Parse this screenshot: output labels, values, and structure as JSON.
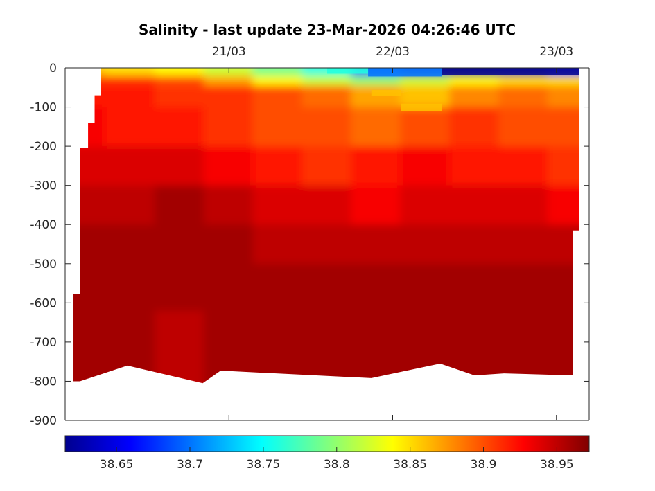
{
  "chart_data": {
    "type": "heatmap",
    "title": "Salinity - last update 23-Mar-2026 04:26:46 UTC",
    "xlabel": "",
    "ylabel": "",
    "x_ticks": [
      "21/03",
      "22/03",
      "23/03"
    ],
    "x_tick_days": [
      21,
      22,
      23
    ],
    "xlim_days": [
      20.0,
      23.2
    ],
    "y_ticks": [
      0,
      -100,
      -200,
      -300,
      -400,
      -500,
      -600,
      -700,
      -800,
      -900
    ],
    "ylim": [
      -900,
      0
    ],
    "colorbar": {
      "colormap": "jet",
      "range": [
        38.615,
        38.972
      ],
      "ticks": [
        "38.65",
        "38.7",
        "38.75",
        "38.8",
        "38.85",
        "38.9",
        "38.95"
      ],
      "tick_values": [
        38.65,
        38.7,
        38.75,
        38.8,
        38.85,
        38.9,
        38.95
      ]
    },
    "bottom_depth_profile": {
      "days": [
        20.09,
        20.38,
        20.84,
        20.95,
        21.87,
        22.29,
        22.5,
        22.68,
        23.1
      ],
      "depth": [
        -800,
        -760,
        -805,
        -773,
        -792,
        -755,
        -785,
        -780,
        -785
      ]
    },
    "profile_top_edge": {
      "days": [
        20.05,
        20.09,
        20.14,
        20.18,
        20.22
      ],
      "depth": [
        -578,
        -205,
        -140,
        -70,
        0
      ]
    },
    "depth_layers": [
      {
        "top": 0,
        "bottom": -20,
        "values": [
          38.86,
          38.85,
          38.84,
          38.82,
          38.79,
          38.76,
          38.7,
          38.64,
          38.62,
          38.63,
          38.66
        ]
      },
      {
        "top": -20,
        "bottom": -45,
        "values": [
          38.91,
          38.91,
          38.9,
          38.87,
          38.84,
          38.82,
          38.8,
          38.82,
          38.84,
          38.85,
          38.85
        ]
      },
      {
        "top": -45,
        "bottom": -100,
        "values": [
          38.92,
          38.92,
          38.91,
          38.91,
          38.9,
          38.89,
          38.87,
          38.86,
          38.88,
          38.89,
          38.88
        ]
      },
      {
        "top": -100,
        "bottom": -200,
        "values": [
          38.93,
          38.92,
          38.92,
          38.91,
          38.9,
          38.9,
          38.89,
          38.9,
          38.91,
          38.9,
          38.9
        ]
      },
      {
        "top": -200,
        "bottom": -300,
        "values": [
          38.94,
          38.94,
          38.94,
          38.93,
          38.92,
          38.91,
          38.92,
          38.93,
          38.92,
          38.92,
          38.91
        ]
      },
      {
        "top": -300,
        "bottom": -400,
        "values": [
          38.95,
          38.95,
          38.96,
          38.95,
          38.94,
          38.94,
          38.93,
          38.94,
          38.94,
          38.94,
          38.93
        ]
      },
      {
        "top": -400,
        "bottom": -500,
        "values": [
          38.96,
          38.96,
          38.96,
          38.96,
          38.95,
          38.95,
          38.95,
          38.95,
          38.95,
          38.95,
          38.95
        ]
      },
      {
        "top": -500,
        "bottom": -620,
        "values": [
          38.96,
          38.96,
          38.96,
          38.96,
          38.96,
          38.96,
          38.96,
          38.96,
          38.96,
          38.96,
          38.96
        ]
      },
      {
        "top": -620,
        "bottom": -820,
        "values": [
          38.96,
          38.96,
          38.95,
          38.96,
          38.96,
          38.96,
          38.96,
          38.96,
          38.96,
          38.96,
          38.96
        ]
      }
    ],
    "layer_day_grid": [
      20.09,
      20.4,
      20.7,
      21.0,
      21.3,
      21.6,
      21.9,
      22.2,
      22.5,
      22.8,
      23.1
    ],
    "grid": false,
    "legend": "none"
  }
}
